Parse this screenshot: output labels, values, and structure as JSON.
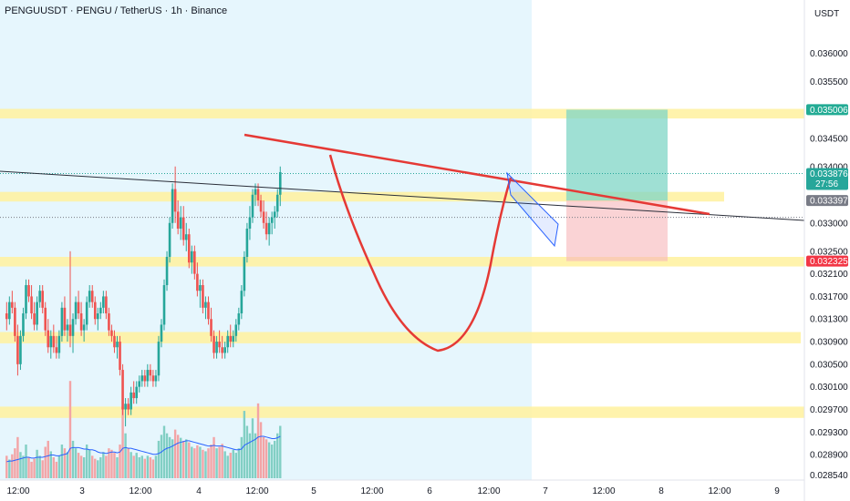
{
  "chart_data": {
    "type": "candlestick",
    "title": "PENGUUSDT · PENGU / TetherUS · 1h · Binance",
    "currency": "USDT",
    "ylim": [
      0.02845,
      0.03685
    ],
    "y_ticks": [
      "0.036000",
      "0.035500",
      "0.034500",
      "0.034000",
      "0.033000",
      "0.032500",
      "0.032100",
      "0.031700",
      "0.031300",
      "0.030900",
      "0.030500",
      "0.030100",
      "0.029700",
      "0.029300",
      "0.028900",
      "0.028540"
    ],
    "x_ticks": [
      "12:00",
      "3",
      "12:00",
      "4",
      "12:00",
      "5",
      "12:00",
      "6",
      "12:00",
      "7",
      "12:00",
      "8",
      "12:00",
      "9"
    ],
    "price_tags": [
      {
        "label": "0.035006",
        "value": 0.035006,
        "color": "#22ab94"
      },
      {
        "label": "0.033876",
        "sublabel": "27:56",
        "value": 0.033876,
        "color": "#26a69a"
      },
      {
        "label": "0.033397",
        "value": 0.033397,
        "color": "#787b86"
      },
      {
        "label": "0.032325",
        "value": 0.032325,
        "color": "#f23645"
      }
    ],
    "support_resistance_zones": [
      [
        0.03485,
        0.03502
      ],
      [
        0.03338,
        0.03355
      ],
      [
        0.03223,
        0.0324
      ],
      [
        0.03087,
        0.03107
      ],
      [
        0.02955,
        0.02975
      ]
    ],
    "trade_setup": {
      "entry": 0.033397,
      "target": 0.035006,
      "stop": 0.032325
    },
    "candles": [
      [
        0.0314,
        0.0316,
        0.0311,
        0.0313
      ],
      [
        0.0313,
        0.0317,
        0.0312,
        0.0316
      ],
      [
        0.0316,
        0.0318,
        0.0314,
        0.0315
      ],
      [
        0.0315,
        0.0316,
        0.0309,
        0.031
      ],
      [
        0.031,
        0.0312,
        0.0303,
        0.0305
      ],
      [
        0.0305,
        0.0311,
        0.0304,
        0.031
      ],
      [
        0.031,
        0.0315,
        0.0309,
        0.0314
      ],
      [
        0.0314,
        0.032,
        0.0313,
        0.0319
      ],
      [
        0.0319,
        0.032,
        0.0316,
        0.0317
      ],
      [
        0.0317,
        0.0319,
        0.0313,
        0.0314
      ],
      [
        0.0314,
        0.0316,
        0.0311,
        0.0312
      ],
      [
        0.0312,
        0.0317,
        0.0311,
        0.0316
      ],
      [
        0.0316,
        0.0319,
        0.0315,
        0.0318
      ],
      [
        0.0318,
        0.0319,
        0.0314,
        0.0315
      ],
      [
        0.0315,
        0.0316,
        0.031,
        0.0311
      ],
      [
        0.0311,
        0.0313,
        0.0307,
        0.0308
      ],
      [
        0.0308,
        0.0311,
        0.0306,
        0.031
      ],
      [
        0.031,
        0.0312,
        0.0307,
        0.0308
      ],
      [
        0.0308,
        0.031,
        0.0306,
        0.0307
      ],
      [
        0.0307,
        0.0311,
        0.0306,
        0.031
      ],
      [
        0.031,
        0.0316,
        0.0309,
        0.0315
      ],
      [
        0.0315,
        0.0317,
        0.031,
        0.0311
      ],
      [
        0.0311,
        0.0313,
        0.0309,
        0.0312
      ],
      [
        0.0312,
        0.0325,
        0.0308,
        0.031
      ],
      [
        0.031,
        0.0314,
        0.0307,
        0.0313
      ],
      [
        0.0313,
        0.0317,
        0.0312,
        0.0316
      ],
      [
        0.0316,
        0.0318,
        0.0313,
        0.0314
      ],
      [
        0.0314,
        0.0316,
        0.031,
        0.0311
      ],
      [
        0.0311,
        0.0313,
        0.0309,
        0.0312
      ],
      [
        0.0312,
        0.0317,
        0.0311,
        0.0316
      ],
      [
        0.0316,
        0.0319,
        0.0315,
        0.0318
      ],
      [
        0.0318,
        0.0319,
        0.0315,
        0.0316
      ],
      [
        0.0316,
        0.0317,
        0.0312,
        0.0313
      ],
      [
        0.0313,
        0.0315,
        0.0311,
        0.0314
      ],
      [
        0.0314,
        0.0316,
        0.0313,
        0.0315
      ],
      [
        0.0315,
        0.0318,
        0.0314,
        0.0317
      ],
      [
        0.0317,
        0.0318,
        0.0313,
        0.0314
      ],
      [
        0.0314,
        0.0315,
        0.031,
        0.0311
      ],
      [
        0.0311,
        0.0312,
        0.0309,
        0.031
      ],
      [
        0.031,
        0.0311,
        0.0307,
        0.0308
      ],
      [
        0.0308,
        0.031,
        0.0306,
        0.0309
      ],
      [
        0.0309,
        0.031,
        0.0303,
        0.0304
      ],
      [
        0.0304,
        0.0305,
        0.0296,
        0.0297
      ],
      [
        0.0297,
        0.0299,
        0.0294,
        0.0298
      ],
      [
        0.0298,
        0.0299,
        0.0296,
        0.0297
      ],
      [
        0.0297,
        0.0301,
        0.0296,
        0.03
      ],
      [
        0.03,
        0.0302,
        0.0298,
        0.0299
      ],
      [
        0.0299,
        0.0302,
        0.0298,
        0.0301
      ],
      [
        0.0301,
        0.0303,
        0.03,
        0.0302
      ],
      [
        0.0302,
        0.0304,
        0.0301,
        0.0303
      ],
      [
        0.0303,
        0.0304,
        0.0301,
        0.0302
      ],
      [
        0.0302,
        0.0305,
        0.0301,
        0.0304
      ],
      [
        0.0304,
        0.0305,
        0.0302,
        0.0303
      ],
      [
        0.0303,
        0.0304,
        0.0301,
        0.0302
      ],
      [
        0.0302,
        0.0304,
        0.0301,
        0.0303
      ],
      [
        0.0303,
        0.031,
        0.0302,
        0.0309
      ],
      [
        0.0309,
        0.0313,
        0.0308,
        0.0312
      ],
      [
        0.0312,
        0.032,
        0.0311,
        0.0319
      ],
      [
        0.0319,
        0.0325,
        0.0318,
        0.0324
      ],
      [
        0.0324,
        0.0331,
        0.0323,
        0.033
      ],
      [
        0.033,
        0.0337,
        0.0329,
        0.0336
      ],
      [
        0.0336,
        0.034,
        0.033,
        0.0332
      ],
      [
        0.0332,
        0.0334,
        0.0328,
        0.0329
      ],
      [
        0.0329,
        0.0333,
        0.0327,
        0.0331
      ],
      [
        0.0331,
        0.0333,
        0.0326,
        0.0327
      ],
      [
        0.0327,
        0.033,
        0.0325,
        0.0328
      ],
      [
        0.0328,
        0.0329,
        0.0322,
        0.0323
      ],
      [
        0.0323,
        0.0326,
        0.0321,
        0.0325
      ],
      [
        0.0325,
        0.0326,
        0.032,
        0.0321
      ],
      [
        0.0321,
        0.0323,
        0.0317,
        0.0318
      ],
      [
        0.0318,
        0.032,
        0.0315,
        0.0319
      ],
      [
        0.0319,
        0.032,
        0.0314,
        0.0315
      ],
      [
        0.0315,
        0.0317,
        0.0313,
        0.0316
      ],
      [
        0.0316,
        0.0317,
        0.0312,
        0.0313
      ],
      [
        0.0313,
        0.0315,
        0.0309,
        0.031
      ],
      [
        0.031,
        0.0311,
        0.0306,
        0.0307
      ],
      [
        0.0307,
        0.031,
        0.0306,
        0.0309
      ],
      [
        0.0309,
        0.0311,
        0.0307,
        0.0308
      ],
      [
        0.0308,
        0.031,
        0.0306,
        0.0307
      ],
      [
        0.0307,
        0.0309,
        0.0306,
        0.0308
      ],
      [
        0.0308,
        0.0311,
        0.0307,
        0.031
      ],
      [
        0.031,
        0.0312,
        0.0308,
        0.0309
      ],
      [
        0.0309,
        0.0311,
        0.0308,
        0.031
      ],
      [
        0.031,
        0.0313,
        0.0309,
        0.0312
      ],
      [
        0.0312,
        0.0315,
        0.0311,
        0.0314
      ],
      [
        0.0314,
        0.0319,
        0.0313,
        0.0318
      ],
      [
        0.0318,
        0.0325,
        0.0317,
        0.0324
      ],
      [
        0.0324,
        0.033,
        0.0323,
        0.0329
      ],
      [
        0.0329,
        0.0333,
        0.0327,
        0.0331
      ],
      [
        0.0331,
        0.0336,
        0.033,
        0.0335
      ],
      [
        0.0335,
        0.0337,
        0.0333,
        0.0336
      ],
      [
        0.0336,
        0.0337,
        0.0333,
        0.0334
      ],
      [
        0.0334,
        0.0335,
        0.0331,
        0.0332
      ],
      [
        0.0332,
        0.0334,
        0.0329,
        0.033
      ],
      [
        0.033,
        0.0332,
        0.0327,
        0.0328
      ],
      [
        0.0328,
        0.0331,
        0.0326,
        0.033
      ],
      [
        0.033,
        0.0332,
        0.0328,
        0.0331
      ],
      [
        0.0331,
        0.0333,
        0.0329,
        0.0332
      ],
      [
        0.0332,
        0.0336,
        0.0331,
        0.0335
      ],
      [
        0.0335,
        0.034,
        0.0333,
        0.0339
      ]
    ],
    "volumes": [
      30,
      25,
      32,
      40,
      55,
      35,
      30,
      45,
      28,
      22,
      26,
      38,
      30,
      24,
      42,
      50,
      36,
      28,
      22,
      30,
      45,
      40,
      35,
      130,
      50,
      40,
      34,
      30,
      28,
      45,
      38,
      30,
      26,
      24,
      28,
      35,
      30,
      40,
      38,
      34,
      28,
      45,
      95,
      60,
      40,
      35,
      30,
      34,
      28,
      30,
      26,
      30,
      28,
      25,
      30,
      50,
      58,
      70,
      60,
      55,
      52,
      65,
      58,
      54,
      50,
      52,
      48,
      42,
      40,
      44,
      42,
      38,
      36,
      40,
      45,
      55,
      40,
      42,
      46,
      36,
      30,
      34,
      38,
      34,
      40,
      55,
      90,
      70,
      60,
      80,
      60,
      100,
      75,
      55,
      52,
      48,
      45,
      50,
      60,
      70
    ],
    "volume_ma": [
      22,
      23,
      23,
      24,
      25,
      26,
      27,
      28,
      28,
      27,
      27,
      28,
      28,
      28,
      29,
      30,
      31,
      31,
      30,
      30,
      31,
      32,
      33,
      40,
      41,
      41,
      41,
      40,
      39,
      39,
      38,
      38,
      37,
      35,
      34,
      34,
      33,
      34,
      35,
      35,
      34,
      35,
      40,
      41,
      40,
      40,
      39,
      38,
      37,
      36,
      35,
      34,
      33,
      32,
      32,
      33,
      35,
      38,
      40,
      41,
      43,
      45,
      47,
      48,
      49,
      50,
      50,
      49,
      48,
      47,
      46,
      45,
      44,
      43,
      43,
      44,
      43,
      43,
      43,
      42,
      41,
      40,
      39,
      38,
      38,
      39,
      44,
      46,
      48,
      50,
      52,
      55,
      56,
      56,
      55,
      54,
      53,
      53,
      54,
      56
    ],
    "grid": false,
    "legend": "none"
  }
}
